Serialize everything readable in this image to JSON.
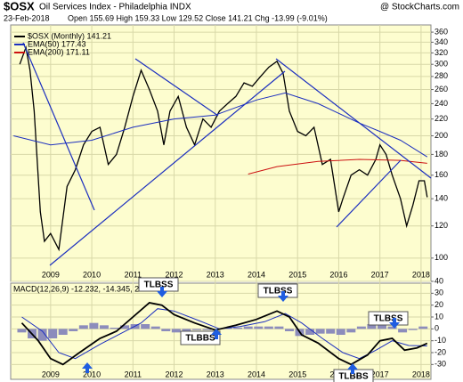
{
  "header": {
    "symbol": "$OSX",
    "title": "Oil Services Index - Philadelphia INDX",
    "date": "23-Feb-2018",
    "info": "Open 155.69  High 159.33  Low 129.52  Close 141.21  Chg -13.99 (-9.01%)",
    "source": "@ StockCharts.com"
  },
  "chart_data": [
    {
      "type": "line",
      "log_scale": true,
      "grid": true,
      "legend": "top-left",
      "xlim": [
        2008.03,
        2018.24
      ],
      "xticks": [
        2009,
        2010,
        2011,
        2012,
        2013,
        2014,
        2015,
        2016,
        2017,
        2018
      ],
      "ylim": [
        95,
        375
      ],
      "yticks": [
        100,
        120,
        140,
        160,
        180,
        200,
        220,
        240,
        260,
        280,
        300,
        320,
        340,
        360
      ],
      "series": [
        {
          "name": "$OSX (Monthly) 141.21",
          "color": "#000000",
          "x": [
            2008.25,
            2008.4,
            2008.5,
            2008.6,
            2008.75,
            2008.85,
            2009.0,
            2009.2,
            2009.4,
            2009.6,
            2009.8,
            2010.0,
            2010.2,
            2010.4,
            2010.6,
            2010.8,
            2011.0,
            2011.2,
            2011.4,
            2011.6,
            2011.75,
            2011.9,
            2012.1,
            2012.3,
            2012.5,
            2012.7,
            2012.9,
            2013.1,
            2013.3,
            2013.5,
            2013.7,
            2013.9,
            2014.1,
            2014.3,
            2014.5,
            2014.65,
            2014.8,
            2015.0,
            2015.2,
            2015.4,
            2015.6,
            2015.8,
            2016.0,
            2016.1,
            2016.3,
            2016.5,
            2016.7,
            2016.9,
            2017.0,
            2017.15,
            2017.3,
            2017.5,
            2017.65,
            2017.8,
            2017.95,
            2018.08,
            2018.15
          ],
          "values": [
            300,
            330,
            290,
            230,
            130,
            110,
            115,
            105,
            150,
            165,
            190,
            205,
            210,
            170,
            180,
            210,
            250,
            290,
            260,
            230,
            190,
            230,
            250,
            210,
            190,
            220,
            210,
            230,
            240,
            250,
            270,
            265,
            280,
            295,
            305,
            285,
            230,
            205,
            200,
            210,
            170,
            175,
            130,
            140,
            160,
            165,
            160,
            175,
            190,
            180,
            160,
            140,
            120,
            135,
            155,
            155,
            141.21
          ]
        },
        {
          "name": "EMA(50) 177.43",
          "color": "#1c2fbf",
          "x": [
            2008.1,
            2009.0,
            2010.0,
            2011.0,
            2012.0,
            2013.0,
            2014.0,
            2014.7,
            2015.5,
            2016.5,
            2017.0,
            2017.5,
            2018.15
          ],
          "values": [
            200,
            190,
            195,
            210,
            220,
            225,
            245,
            255,
            240,
            215,
            205,
            195,
            177.43
          ]
        },
        {
          "name": "EMA(200) 171.11",
          "color": "#cc1111",
          "x": [
            2013.8,
            2014.5,
            2015.5,
            2016.5,
            2017.5,
            2018.15
          ],
          "values": [
            161,
            168,
            173,
            175,
            174,
            171.11
          ]
        }
      ]
    },
    {
      "type": "macd",
      "label": "MACD(12,26,9) -12.232, -14.345, 2.113",
      "grid": true,
      "xlim": [
        2008.03,
        2018.24
      ],
      "xticks": [
        2009,
        2010,
        2011,
        2012,
        2013,
        2014,
        2015,
        2016,
        2017,
        2018
      ],
      "ylim": [
        -41,
        40
      ],
      "yticks": [
        -30,
        -20,
        -10,
        0,
        10,
        20,
        30,
        40
      ],
      "series": [
        {
          "name": "MACD",
          "color": "#000000",
          "x": [
            2008.3,
            2008.7,
            2009.0,
            2009.3,
            2009.7,
            2010.2,
            2010.6,
            2011.0,
            2011.4,
            2011.7,
            2012.0,
            2012.5,
            2013.0,
            2013.5,
            2014.0,
            2014.5,
            2014.8,
            2015.1,
            2015.5,
            2016.0,
            2016.3,
            2016.7,
            2017.0,
            2017.3,
            2017.6,
            2017.9,
            2018.15
          ],
          "values": [
            5,
            -10,
            -25,
            -30,
            -20,
            -8,
            -2,
            10,
            22,
            20,
            12,
            5,
            -1,
            3,
            8,
            15,
            10,
            -5,
            -12,
            -25,
            -30,
            -22,
            -10,
            -8,
            -18,
            -16,
            -12.232
          ]
        },
        {
          "name": "Signal",
          "color": "#1c2fbf",
          "x": [
            2008.3,
            2008.8,
            2009.2,
            2009.6,
            2010.2,
            2010.7,
            2011.2,
            2011.6,
            2012.0,
            2012.6,
            2013.1,
            2013.6,
            2014.2,
            2014.7,
            2015.1,
            2015.6,
            2016.1,
            2016.5,
            2016.9,
            2017.3,
            2017.7,
            2018.15
          ],
          "values": [
            10,
            -2,
            -20,
            -25,
            -13,
            -4,
            5,
            17,
            15,
            7,
            0,
            2,
            6,
            13,
            5,
            -8,
            -20,
            -25,
            -18,
            -10,
            -14,
            -14.345
          ]
        },
        {
          "name": "Histogram",
          "color": "#8c8cbc",
          "x": [
            2008.3,
            2008.55,
            2008.8,
            2009.05,
            2009.3,
            2009.55,
            2009.8,
            2010.05,
            2010.3,
            2010.55,
            2010.8,
            2011.05,
            2011.3,
            2011.55,
            2011.8,
            2012.05,
            2012.3,
            2012.55,
            2012.8,
            2013.05,
            2013.3,
            2013.55,
            2013.8,
            2014.05,
            2014.3,
            2014.55,
            2014.8,
            2015.05,
            2015.3,
            2015.55,
            2015.8,
            2016.05,
            2016.3,
            2016.55,
            2016.8,
            2017.05,
            2017.3,
            2017.55,
            2017.8,
            2018.05
          ],
          "values": [
            -3,
            -8,
            -10,
            -8,
            -5,
            -2,
            3,
            5,
            3,
            1,
            3,
            4,
            4,
            2,
            -2,
            -3,
            -2,
            -1,
            -1,
            0,
            1,
            1,
            2,
            2,
            2,
            2,
            -2,
            -6,
            -5,
            -4,
            -4,
            -5,
            -3,
            2,
            4,
            6,
            2,
            -3,
            -1,
            2
          ]
        }
      ],
      "annotations": [
        "TLBSS",
        "TLBBS",
        "TLBSS",
        "TLBBS",
        "TLBSS"
      ]
    }
  ]
}
